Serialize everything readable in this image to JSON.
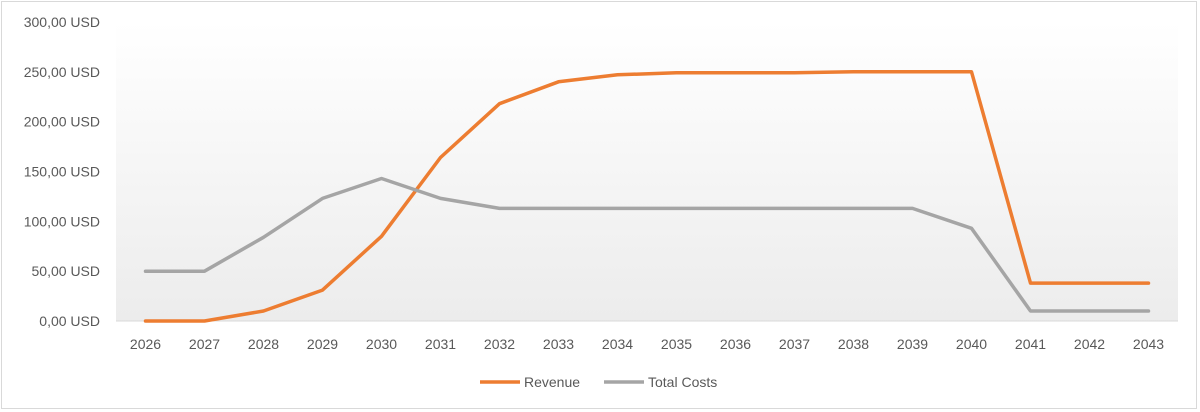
{
  "chart_data": {
    "type": "line",
    "title": "",
    "xlabel": "",
    "ylabel": "",
    "categories": [
      "2026",
      "2027",
      "2028",
      "2029",
      "2030",
      "2031",
      "2032",
      "2033",
      "2034",
      "2035",
      "2036",
      "2037",
      "2038",
      "2039",
      "2040",
      "2041",
      "2042",
      "2043"
    ],
    "ylim": [
      0,
      300
    ],
    "yticks": [
      0,
      50,
      100,
      150,
      200,
      250,
      300
    ],
    "ytick_labels": [
      "0,00 USD",
      "50,00 USD",
      "100,00 USD",
      "150,00 USD",
      "200,00 USD",
      "250,00 USD",
      "300,00 USD"
    ],
    "grid": false,
    "legend_position": "bottom",
    "series": [
      {
        "name": "Revenue",
        "color": "#ED7D31",
        "values": [
          0,
          0,
          10,
          31,
          85,
          164,
          218,
          240,
          247,
          249,
          249,
          249,
          250,
          250,
          250,
          38,
          38,
          38
        ]
      },
      {
        "name": "Total Costs",
        "color": "#A5A5A5",
        "values": [
          50,
          50,
          84,
          123,
          143,
          123,
          113,
          113,
          113,
          113,
          113,
          113,
          113,
          113,
          93,
          10,
          10,
          10
        ]
      }
    ]
  }
}
